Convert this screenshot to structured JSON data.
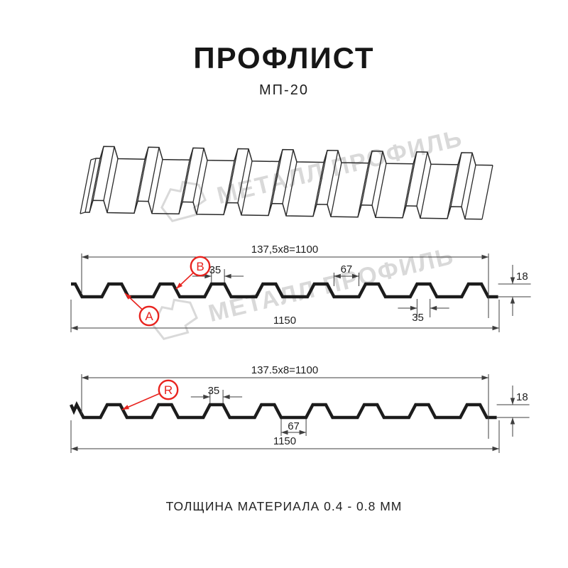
{
  "header": {
    "title": "ПРОФЛИСТ",
    "subtitle": "МП-20"
  },
  "watermark": {
    "text": "МЕТАЛЛ ПРОФИЛЬ"
  },
  "sections": [
    {
      "name": "front-side",
      "pitch_dim": "137,5x8=1100",
      "rib_top_width": "35",
      "flange_width": "67",
      "height": "18",
      "rib_bottom_width": "35",
      "total_width": "1150",
      "labels": [
        "A",
        "B"
      ]
    },
    {
      "name": "reverse-side",
      "pitch_dim": "137.5x8=1100",
      "rib_top_width": "35",
      "flange_width": "67",
      "height": "18",
      "total_width": "1150",
      "labels": [
        "R"
      ]
    }
  ],
  "footer": {
    "caption": "ТОЛЩИНА МАТЕРИАЛА 0.4 - 0.8 ММ"
  },
  "colors": {
    "accent_red": "#e8231e",
    "line": "#1c1c1c",
    "line3d": "#2a2a2a",
    "dim_line": "#3f3f3f",
    "dim_text": "#1f1f1f",
    "watermark": "#d9d9d9"
  }
}
